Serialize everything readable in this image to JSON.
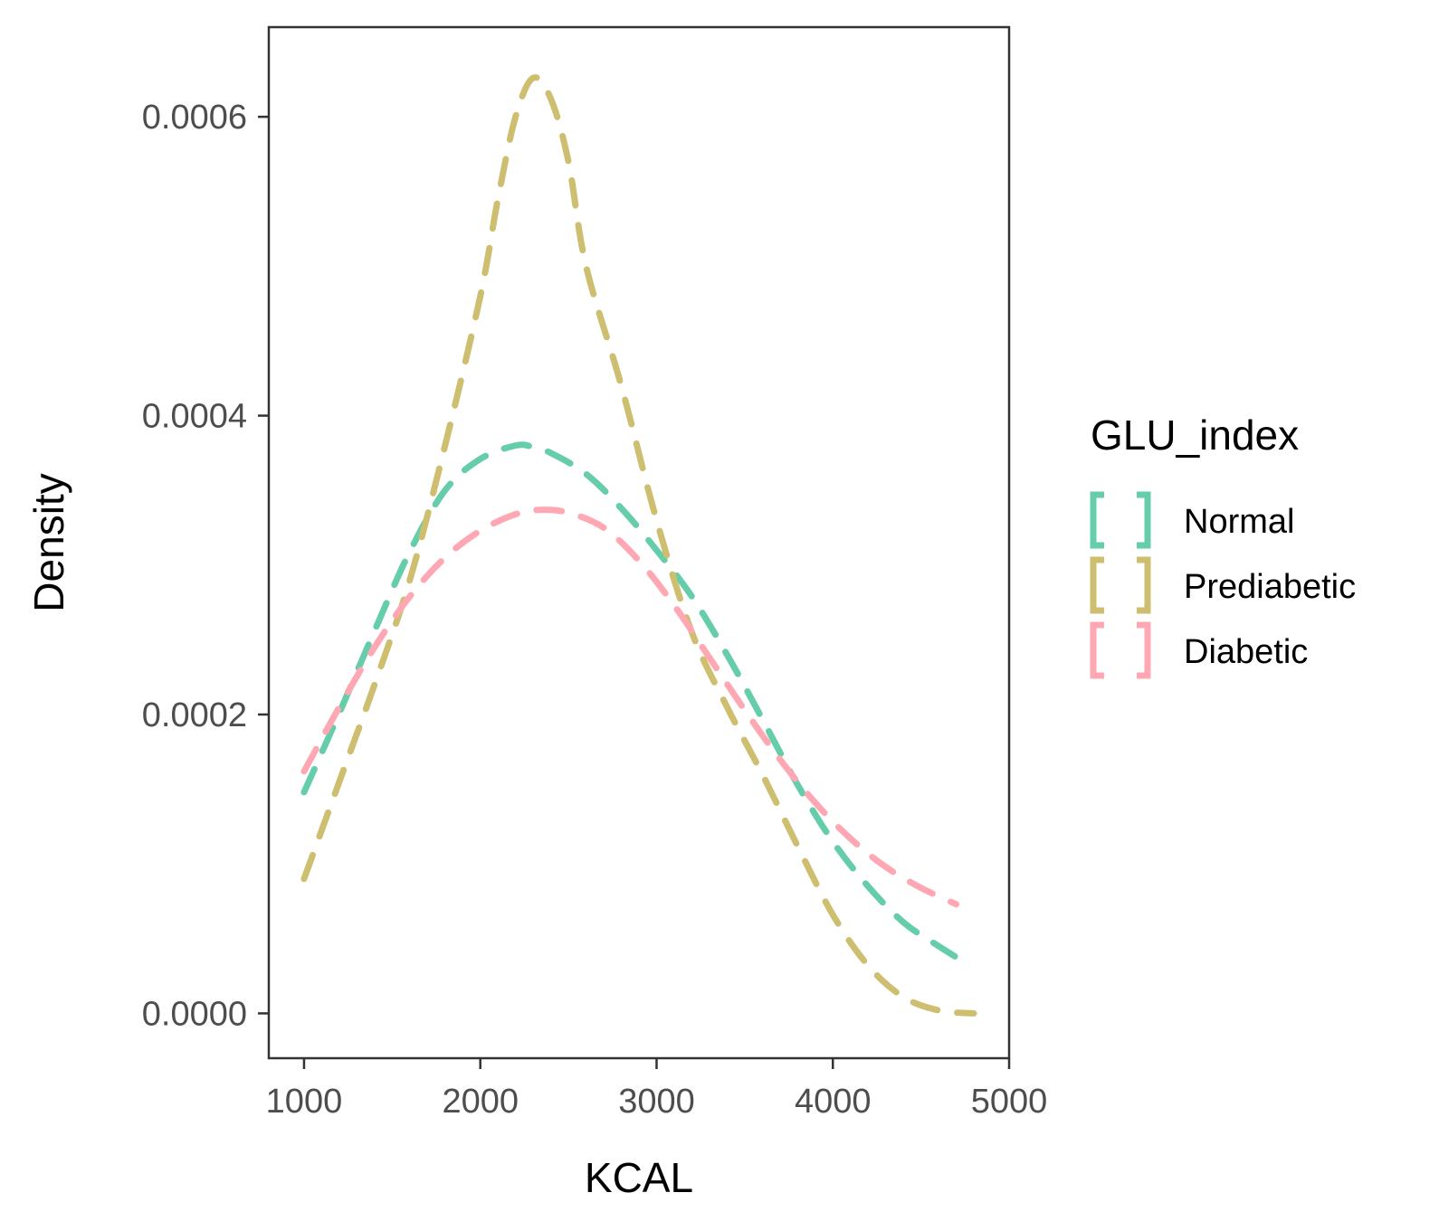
{
  "chart_data": {
    "type": "line",
    "title": "",
    "xlabel": "KCAL",
    "ylabel": "Density",
    "xlim": [
      800,
      5000
    ],
    "ylim": [
      -3e-05,
      0.00066
    ],
    "x_ticks": [
      1000,
      2000,
      3000,
      4000,
      5000
    ],
    "x_tick_labels": [
      "1000",
      "2000",
      "3000",
      "4000",
      "5000"
    ],
    "y_ticks": [
      0,
      0.0002,
      0.0004,
      0.0006
    ],
    "y_tick_labels": [
      "0.0000",
      "0.0002",
      "0.0004",
      "0.0006"
    ],
    "grid": false,
    "line_style": "dashed",
    "legend": {
      "title": "GLU_index",
      "position": "right"
    },
    "series": [
      {
        "name": "Normal",
        "color": "#66CDAA",
        "x": [
          1000,
          1200,
          1400,
          1600,
          1800,
          2000,
          2200,
          2300,
          2400,
          2600,
          2800,
          3000,
          3200,
          3400,
          3600,
          3800,
          4000,
          4200,
          4400,
          4600,
          4750
        ],
        "y": [
          0.000148,
          0.000201,
          0.000256,
          0.000309,
          0.00035,
          0.000371,
          0.00038,
          0.000379,
          0.000375,
          0.000361,
          0.000338,
          0.00031,
          0.000279,
          0.00024,
          0.000197,
          0.000153,
          0.000115,
          8.5e-05,
          6.1e-05,
          4.5e-05,
          3.4e-05
        ]
      },
      {
        "name": "Prediabetic",
        "color": "#CDBE70",
        "x": [
          1000,
          1200,
          1400,
          1600,
          1800,
          2000,
          2100,
          2200,
          2300,
          2400,
          2500,
          2600,
          2800,
          3000,
          3200,
          3400,
          3600,
          3800,
          4000,
          4200,
          4400,
          4600,
          4800
        ],
        "y": [
          9e-05,
          0.000155,
          0.00022,
          0.00029,
          0.00038,
          0.00048,
          0.000545,
          0.0006,
          0.000626,
          0.000612,
          0.00057,
          0.0005,
          0.00042,
          0.00033,
          0.000255,
          0.000205,
          0.00016,
          0.000112,
          6.6e-05,
          3.2e-05,
          1.1e-05,
          2e-06,
          0.0
        ]
      },
      {
        "name": "Diabetic",
        "color": "#FFA8B4",
        "x": [
          1000,
          1200,
          1400,
          1600,
          1800,
          2000,
          2200,
          2350,
          2500,
          2700,
          2900,
          3100,
          3300,
          3500,
          3700,
          3900,
          4100,
          4300,
          4500,
          4700
        ],
        "y": [
          0.000162,
          0.000205,
          0.000245,
          0.000279,
          0.000305,
          0.000323,
          0.000334,
          0.000337,
          0.000335,
          0.000325,
          0.000303,
          0.000273,
          0.000238,
          0.000203,
          0.00017,
          0.000141,
          0.000117,
          9.8e-05,
          8.4e-05,
          7.3e-05
        ]
      }
    ]
  }
}
